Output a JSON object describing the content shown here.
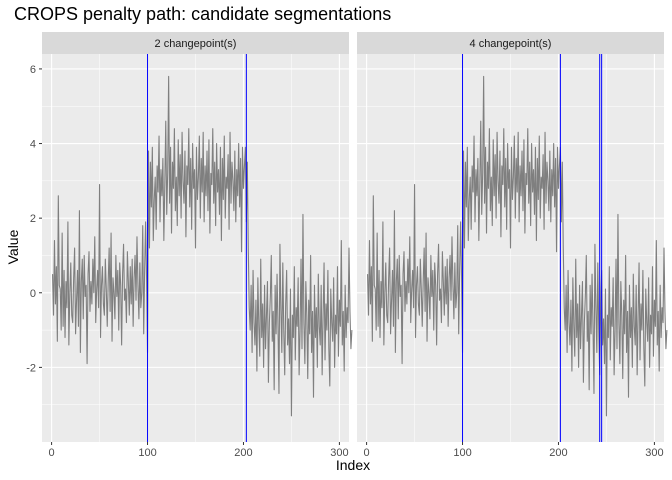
{
  "chart_data": {
    "type": "line",
    "title": "CROPS penalty path: candidate segmentations",
    "xlabel": "Index",
    "ylabel": "Value",
    "xlim": [
      -10,
      310
    ],
    "ylim": [
      -4,
      6.4
    ],
    "x_ticks": [
      0,
      100,
      200,
      300
    ],
    "x_tick_labels": [
      "0",
      "100",
      "200",
      "300"
    ],
    "y_ticks": [
      -2,
      0,
      2,
      4,
      6
    ],
    "y_tick_labels": [
      "-2",
      "0",
      "2",
      "4",
      "6"
    ],
    "grid": true,
    "colors": {
      "series": "#7f7f7f",
      "changepoint": "#0000ff",
      "panel_bg": "#ebebeb",
      "strip_bg": "#d9d9d9",
      "grid": "#ffffff"
    },
    "series_values": [
      0.5,
      -0.6,
      1.4,
      -0.3,
      0.7,
      -1.3,
      2.6,
      0.2,
      0.1,
      -1.0,
      1.6,
      -0.9,
      0.6,
      -1.2,
      0.3,
      -0.4,
      1.9,
      -1.4,
      0.0,
      0.8,
      -0.6,
      -0.8,
      0.4,
      1.2,
      -1.1,
      -0.2,
      0.6,
      -0.9,
      2.2,
      -1.6,
      0.3,
      0.9,
      -0.7,
      1.0,
      -0.1,
      0.2,
      -1.9,
      0.5,
      1.1,
      -0.5,
      0.3,
      -0.3,
      0.9,
      0.0,
      1.5,
      -0.8,
      0.1,
      0.6,
      -0.4,
      2.9,
      -1.2,
      0.2,
      0.7,
      -0.3,
      -0.6,
      0.9,
      0.1,
      -0.9,
      0.3,
      1.2,
      -0.5,
      1.6,
      -1.3,
      0.4,
      0.0,
      -0.7,
      1.0,
      -0.1,
      0.6,
      -1.0,
      0.8,
      0.2,
      -1.4,
      0.5,
      1.3,
      -0.2,
      0.1,
      -0.8,
      1.1,
      0.3,
      -0.6,
      0.7,
      -0.3,
      0.9,
      -0.9,
      0.4,
      1.0,
      -0.2,
      1.5,
      0.2,
      -0.7,
      0.8,
      -0.4,
      0.0,
      1.8,
      -1.1,
      0.6,
      1.9,
      0.4,
      -1.6,
      3.8,
      1.2,
      3.5,
      2.3,
      3.9,
      1.4,
      2.5,
      3.1,
      1.7,
      3.4,
      2.7,
      4.2,
      1.9,
      3.3,
      2.6,
      3.6,
      1.4,
      2.9,
      4.6,
      2.1,
      3.2,
      5.8,
      2.4,
      3.9,
      1.6,
      3.5,
      2.8,
      4.4,
      2.2,
      3.1,
      1.8,
      4.1,
      2.6,
      3.7,
      2.0,
      4.3,
      3.0,
      2.4,
      3.8,
      1.5,
      3.4,
      2.9,
      4.4,
      2.3,
      3.6,
      1.7,
      4.0,
      2.8,
      3.3,
      1.2,
      3.9,
      2.5,
      3.1,
      4.2,
      2.0,
      3.6,
      2.7,
      4.3,
      1.9,
      3.4,
      2.6,
      3.8,
      2.2,
      4.1,
      1.6,
      3.2,
      2.9,
      4.4,
      2.4,
      3.5,
      1.8,
      4.0,
      2.7,
      3.3,
      2.1,
      3.9,
      1.4,
      3.6,
      2.5,
      4.2,
      2.0,
      3.1,
      2.8,
      3.7,
      1.7,
      4.3,
      2.4,
      3.5,
      3.0,
      2.2,
      3.8,
      1.9,
      3.3,
      2.6,
      4.0,
      2.3,
      3.6,
      1.1,
      3.9,
      2.8,
      3.4,
      3.9,
      1.9,
      3.5,
      1.2,
      -0.4,
      -1.0,
      0.2,
      -1.6,
      0.6,
      -0.8,
      -1.4,
      -0.2,
      -2.1,
      0.4,
      -0.9,
      -1.7,
      0.9,
      -1.2,
      -0.3,
      -2.0,
      0.2,
      -1.5,
      -0.6,
      0.3,
      -2.4,
      -0.8,
      -0.1,
      1.0,
      -1.3,
      -0.5,
      -2.6,
      0.2,
      -1.1,
      0.5,
      -0.9,
      -2.7,
      1.3,
      -0.4,
      -1.6,
      0.8,
      -1.0,
      -2.2,
      -0.3,
      0.6,
      -1.4,
      -0.7,
      -1.9,
      0.1,
      -3.3,
      -0.6,
      -1.2,
      0.7,
      -1.8,
      -0.4,
      -0.9,
      0.4,
      -2.2,
      -1.0,
      0.9,
      -1.5,
      2.1,
      -0.8,
      -1.9,
      0.3,
      -0.6,
      -2.3,
      -0.2,
      -1.1,
      1.0,
      -1.6,
      -0.5,
      -2.8,
      0.2,
      -1.2,
      -0.4,
      -2.0,
      0.5,
      -0.9,
      -1.4,
      0.2,
      -2.2,
      -0.6,
      0.8,
      -1.8,
      -0.3,
      -1.0,
      0.6,
      -1.5,
      -2.5,
      0.1,
      -0.8,
      -1.3,
      0.4,
      -2.0,
      -0.6,
      -1.1,
      0.7,
      -1.7,
      -0.2,
      -0.9,
      1.4,
      -1.4,
      -0.5,
      -2.1,
      0.2,
      -1.2,
      -0.4,
      -0.8,
      1.2,
      -0.5,
      -1.5,
      -1.0
    ],
    "panels": [
      {
        "label": "2 changepoint(s)",
        "changepoints": [
          100,
          203
        ]
      },
      {
        "label": "4 changepoint(s)",
        "changepoints": [
          100,
          202,
          243,
          245
        ]
      }
    ]
  }
}
